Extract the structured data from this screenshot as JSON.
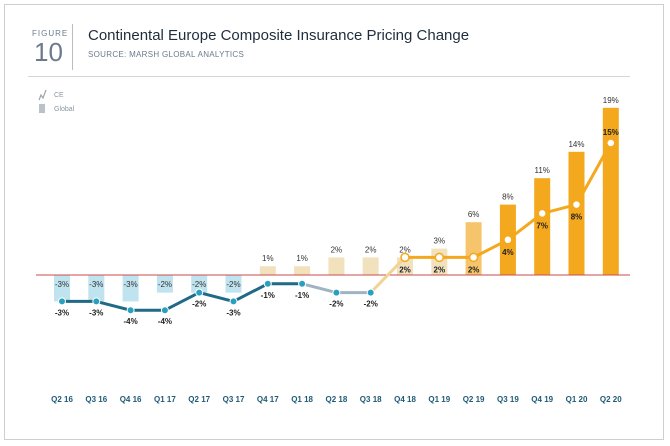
{
  "header": {
    "figure_label": "FIGURE",
    "figure_number": "10",
    "title": "Continental Europe Composite Insurance Pricing Change",
    "source": "SOURCE: MARSH GLOBAL ANALYTICS"
  },
  "chart_data": {
    "type": "bar",
    "categories": [
      "Q2 16",
      "Q3 16",
      "Q4 16",
      "Q1 17",
      "Q2 17",
      "Q3 17",
      "Q4 17",
      "Q1 18",
      "Q2 18",
      "Q3 18",
      "Q4 18",
      "Q1 19",
      "Q2 19",
      "Q3 19",
      "Q4 19",
      "Q1 20",
      "Q2 20"
    ],
    "series": [
      {
        "name": "Global",
        "type": "bar",
        "values": [
          -3,
          -3,
          -3,
          -2,
          -2,
          -2,
          1,
          1,
          2,
          2,
          2,
          3,
          6,
          8,
          11,
          14,
          19
        ]
      },
      {
        "name": "CE",
        "type": "line",
        "values": [
          -3,
          -3,
          -4,
          -4,
          -2,
          -3,
          -1,
          -1,
          -2,
          -2,
          2,
          2,
          2,
          4,
          7,
          8,
          15
        ]
      }
    ],
    "bar_labels": [
      "-3%",
      "-3%",
      "-3%",
      "-2%",
      "-2%",
      "-2%",
      "1%",
      "1%",
      "2%",
      "2%",
      "2%",
      "3%",
      "6%",
      "8%",
      "11%",
      "14%",
      "19%"
    ],
    "line_labels": [
      "-3%",
      "-3%",
      "-4%",
      "-4%",
      "-2%",
      "-3%",
      "-1%",
      "-1%",
      "-2%",
      "-2%",
      "2%",
      "2%",
      "2%",
      "4%",
      "7%",
      "8%",
      "15%"
    ],
    "legend": [
      "CE",
      "Global"
    ],
    "legend_position": "top-left",
    "grid": false,
    "colors": {
      "bar_negative": "#bfe3ef",
      "bar_pale": "#f2e1bd",
      "bar_mid": "#f6c46a",
      "bar_strong": "#f4a81e",
      "line_dark": "#1f6a86",
      "line_light": "#9fb3c0",
      "line_pale": "#f2d394",
      "line_strong": "#f4a81e",
      "marker_teal": "#2aa0bf",
      "axis": "#cc4b4b",
      "tick_text": "#1f5a75"
    }
  }
}
